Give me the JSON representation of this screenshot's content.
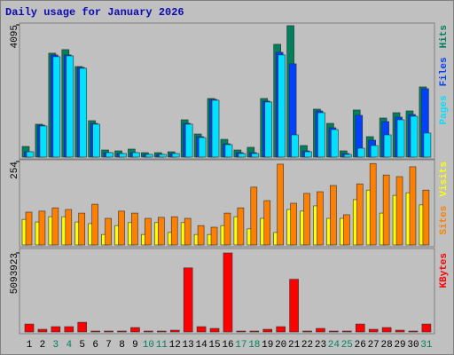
{
  "title": "Daily usage for January 2026",
  "chart_data": [
    {
      "type": "bar",
      "series": [
        {
          "name": "Hits",
          "color": "#00805c",
          "values": [
            330,
            1018,
            3218,
            3328,
            2805,
            1128,
            220,
            193,
            248,
            138,
            138,
            165,
            1155,
            715,
            1815,
            550,
            220,
            303,
            1815,
            3493,
            4070,
            358,
            1485,
            1045,
            193,
            1458,
            633,
            1210,
            1375,
            1430,
            2173
          ]
        },
        {
          "name": "Files",
          "color": "#0040ff",
          "values": [
            165,
            990,
            3163,
            3163,
            2778,
            1045,
            138,
            110,
            138,
            83,
            83,
            110,
            1045,
            633,
            1788,
            413,
            138,
            138,
            1733,
            3245,
            2888,
            193,
            1430,
            908,
            110,
            1293,
            523,
            1100,
            1238,
            1320,
            2118
          ]
        },
        {
          "name": "Pages",
          "color": "#00e0ff",
          "values": [
            165,
            963,
            3108,
            3135,
            2750,
            1018,
            138,
            110,
            138,
            83,
            83,
            110,
            1018,
            605,
            1760,
            385,
            110,
            110,
            1705,
            3163,
            688,
            165,
            1375,
            853,
            83,
            275,
            358,
            688,
            1155,
            1265,
            743
          ]
        }
      ],
      "ylim": [
        0,
        4095
      ],
      "yticks": [
        4095
      ]
    },
    {
      "type": "bar",
      "series": [
        {
          "name": "Visits",
          "color": "#ffff00",
          "values": [
            78,
            70,
            86,
            86,
            70,
            65,
            32,
            59,
            68,
            32,
            68,
            38,
            68,
            32,
            32,
            59,
            86,
            49,
            81,
            38,
            108,
            103,
            119,
            81,
            81,
            138,
            167,
            97,
            151,
            159,
            122
          ]
        },
        {
          "name": "Sites",
          "color": "#ff8000",
          "values": [
            100,
            103,
            113,
            108,
            97,
            124,
            81,
            103,
            97,
            81,
            84,
            86,
            81,
            59,
            54,
            97,
            113,
            176,
            135,
            246,
            127,
            157,
            162,
            181,
            92,
            186,
            248,
            213,
            208,
            238,
            167
          ]
        }
      ],
      "ylim": [
        0,
        254
      ],
      "yticks": [
        254
      ]
    },
    {
      "type": "bar",
      "categories": [
        "1",
        "2",
        "3",
        "4",
        "5",
        "6",
        "7",
        "8",
        "9",
        "10",
        "11",
        "12",
        "13",
        "14",
        "15",
        "16",
        "17",
        "18",
        "19",
        "20",
        "21",
        "22",
        "23",
        "24",
        "25",
        "26",
        "27",
        "28",
        "29",
        "30",
        "31"
      ],
      "category_colors": [
        "#000000",
        "#000000",
        "#00805c",
        "#00805c",
        "#000000",
        "#000000",
        "#000000",
        "#000000",
        "#000000",
        "#00805c",
        "#00805c",
        "#000000",
        "#000000",
        "#000000",
        "#000000",
        "#000000",
        "#00805c",
        "#00805c",
        "#000000",
        "#000000",
        "#000000",
        "#000000",
        "#000000",
        "#00805c",
        "#00805c",
        "#000000",
        "#000000",
        "#000000",
        "#000000",
        "#000000",
        "#00805c"
      ],
      "series": [
        {
          "name": "KBytes",
          "color": "#ff0000",
          "values": [
            509400,
            169800,
            339600,
            339600,
            622600,
            56600,
            56600,
            56600,
            283000,
            56600,
            56600,
            113200,
            4131800,
            339600,
            226400,
            5093923,
            56600,
            56600,
            169800,
            339600,
            3396000,
            56600,
            226400,
            56600,
            56600,
            509400,
            169800,
            283000,
            113200,
            56600,
            509400
          ]
        }
      ],
      "ylim": [
        0,
        5093923
      ],
      "yticks": [
        5093923
      ]
    }
  ]
}
